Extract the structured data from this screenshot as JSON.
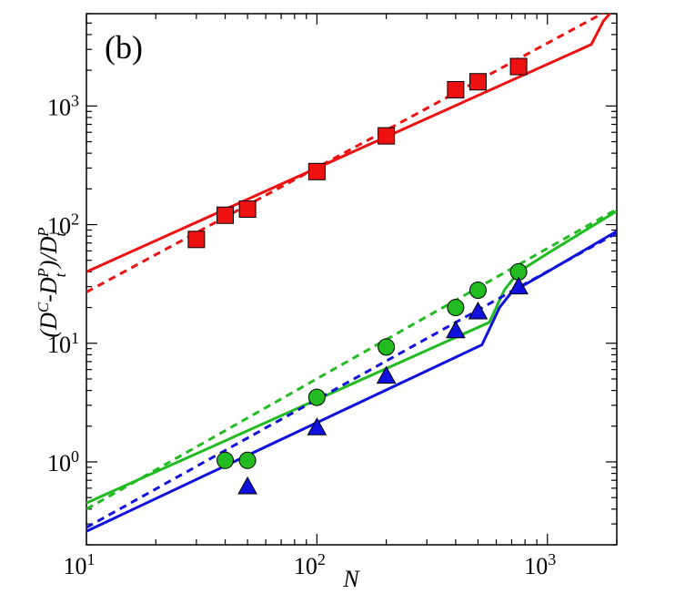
{
  "chart_data": {
    "type": "scatter",
    "panel_label": "(b)",
    "xlabel": "N",
    "ylabel_parts": {
      "open": "(D",
      "sup_c": "C",
      "dash": "-D",
      "sub_t1": "t",
      "sup_p1": "P",
      "close": ")/D",
      "sub_t2": "t",
      "sup_p2": "P"
    },
    "xscale": "log",
    "yscale": "log",
    "xlim": [
      10,
      2000
    ],
    "ylim": [
      0.2,
      6000
    ],
    "x_ticks": [
      {
        "value": 10,
        "base": "10",
        "exp": "1"
      },
      {
        "value": 100,
        "base": "10",
        "exp": "2"
      },
      {
        "value": 1000,
        "base": "10",
        "exp": "3"
      }
    ],
    "y_ticks": [
      {
        "value": 1,
        "base": "10",
        "exp": "0"
      },
      {
        "value": 10,
        "base": "10",
        "exp": "1"
      },
      {
        "value": 100,
        "base": "10",
        "exp": "2"
      },
      {
        "value": 1000,
        "base": "10",
        "exp": "3"
      }
    ],
    "series": [
      {
        "name": "red squares",
        "color": "#ee1111",
        "marker": "square",
        "points": [
          [
            30,
            75
          ],
          [
            40,
            120
          ],
          [
            50,
            135
          ],
          [
            100,
            280
          ],
          [
            200,
            560
          ],
          [
            400,
            1370
          ],
          [
            500,
            1600
          ],
          [
            750,
            2150
          ]
        ],
        "solid_line": [
          [
            10,
            40
          ],
          [
            1550,
            3300
          ],
          [
            1750,
            5200
          ],
          [
            2000,
            7000
          ]
        ],
        "dashed_line": [
          [
            10,
            27
          ],
          [
            2000,
            7000
          ]
        ]
      },
      {
        "name": "green circles",
        "color": "#22bb22",
        "marker": "circle",
        "points": [
          [
            40,
            1.03
          ],
          [
            50,
            1.03
          ],
          [
            100,
            3.5
          ],
          [
            200,
            9.3
          ],
          [
            400,
            20
          ],
          [
            500,
            28
          ],
          [
            750,
            40
          ]
        ],
        "solid_line": [
          [
            10,
            0.45
          ],
          [
            560,
            15
          ],
          [
            600,
            20
          ],
          [
            650,
            28
          ],
          [
            750,
            40
          ],
          [
            1000,
            57
          ],
          [
            2000,
            130
          ]
        ],
        "dashed_line": [
          [
            10,
            0.4
          ],
          [
            2000,
            135
          ]
        ]
      },
      {
        "name": "blue triangles",
        "color": "#1111dd",
        "marker": "triangle",
        "points": [
          [
            50,
            0.62
          ],
          [
            100,
            1.95
          ],
          [
            200,
            5.3
          ],
          [
            400,
            12.8
          ],
          [
            500,
            18.5
          ],
          [
            750,
            30
          ]
        ],
        "solid_line": [
          [
            10,
            0.26
          ],
          [
            520,
            9.7
          ],
          [
            620,
            20
          ],
          [
            700,
            27
          ],
          [
            1000,
            40
          ],
          [
            2000,
            88
          ]
        ],
        "dashed_line": [
          [
            10,
            0.28
          ],
          [
            2000,
            85
          ]
        ]
      }
    ]
  }
}
